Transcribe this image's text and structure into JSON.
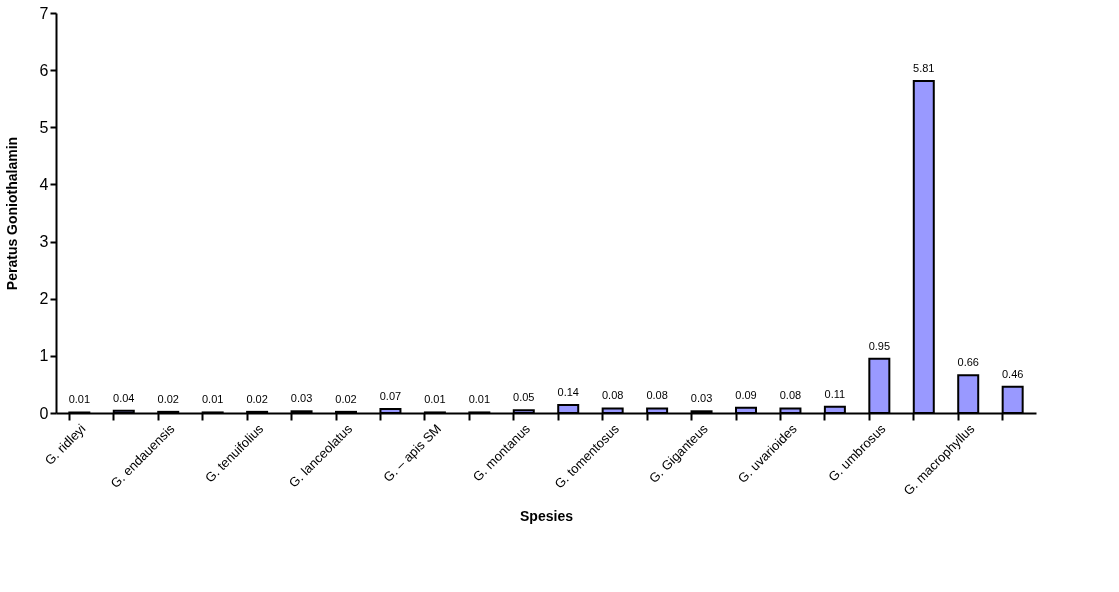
{
  "chart_data": {
    "type": "bar",
    "xlabel": "Spesies",
    "ylabel": "Peratus Goniothalamin",
    "categories": [
      "G. ridleyi",
      null,
      "G. endauensis",
      null,
      "G. tenuifolius",
      null,
      "G. lanceolatus",
      null,
      "G. – apis SM",
      null,
      "G. montanus",
      null,
      "G. tomentosus",
      null,
      "G. Giganteus",
      null,
      "G. uvarioides",
      null,
      "G. umbrosus",
      null,
      "G. macrophyllus",
      null
    ],
    "values": [
      0.01,
      0.04,
      0.02,
      0.01,
      0.02,
      0.03,
      0.02,
      0.07,
      0.01,
      0.01,
      0.05,
      0.14,
      0.08,
      0.08,
      0.03,
      0.09,
      0.08,
      0.11,
      0.95,
      5.81,
      0.66,
      0.46
    ],
    "color": "#9999ff",
    "ylim": [
      0,
      7
    ],
    "yticks": [
      0,
      1,
      2,
      3,
      4,
      5,
      6,
      7
    ],
    "grid": false,
    "data_labels": true
  }
}
